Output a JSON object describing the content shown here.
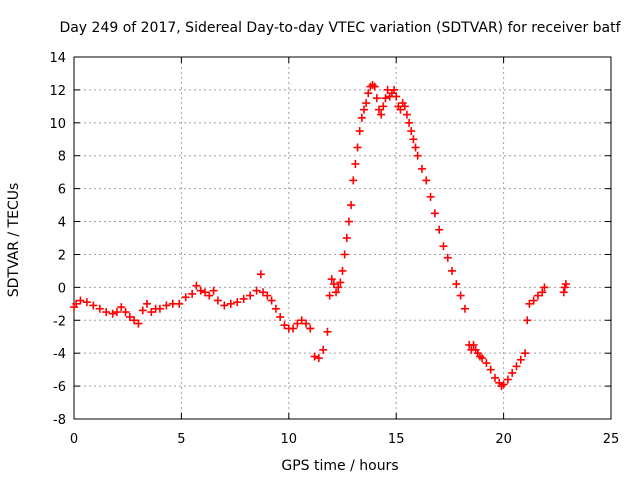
{
  "chart_data": {
    "type": "scatter",
    "title": "Day 249 of 2017, Sidereal Day-to-day VTEC variation (SDTVAR) for receiver batf",
    "xlabel": "GPS time / hours",
    "ylabel": "SDTVAR / TECUs",
    "xlim": [
      0,
      25
    ],
    "ylim": [
      -8,
      14
    ],
    "xticks": [
      0,
      5,
      10,
      15,
      20,
      25
    ],
    "yticks": [
      -8,
      -6,
      -4,
      -2,
      0,
      2,
      4,
      6,
      8,
      10,
      12,
      14
    ],
    "grid": true,
    "marker": "+",
    "series": [
      {
        "name": "SDTVAR",
        "color": "#ff0000",
        "x": [
          0,
          0.1,
          0.3,
          0.6,
          0.9,
          1.2,
          1.5,
          1.8,
          2.0,
          2.2,
          2.4,
          2.6,
          2.8,
          3.0,
          3.2,
          3.4,
          3.6,
          3.8,
          4.0,
          4.3,
          4.6,
          4.9,
          5.2,
          5.5,
          5.7,
          5.9,
          6.1,
          6.3,
          6.5,
          6.7,
          7.0,
          7.3,
          7.6,
          7.9,
          8.2,
          8.5,
          8.7,
          8.8,
          9.0,
          9.2,
          9.4,
          9.6,
          9.8,
          10.0,
          10.2,
          10.4,
          10.6,
          10.8,
          11.0,
          11.2,
          11.4,
          11.6,
          11.8,
          11.9,
          12.0,
          12.1,
          12.2,
          12.3,
          12.4,
          12.5,
          12.6,
          12.7,
          12.8,
          12.9,
          13.0,
          13.1,
          13.2,
          13.3,
          13.4,
          13.5,
          13.6,
          13.7,
          13.8,
          13.9,
          14.0,
          14.1,
          14.2,
          14.3,
          14.4,
          14.5,
          14.6,
          14.7,
          14.8,
          14.9,
          15.0,
          15.1,
          15.2,
          15.3,
          15.4,
          15.5,
          15.6,
          15.7,
          15.8,
          15.9,
          16.0,
          16.2,
          16.4,
          16.6,
          16.8,
          17.0,
          17.2,
          17.4,
          17.6,
          17.8,
          18.0,
          18.2,
          18.4,
          18.5,
          18.6,
          18.7,
          18.8,
          18.9,
          19.0,
          19.2,
          19.4,
          19.6,
          19.8,
          19.9,
          20.0,
          20.2,
          20.4,
          20.6,
          20.8,
          21.0,
          21.1,
          21.2,
          21.4,
          21.6,
          21.8,
          21.9,
          22.8,
          22.85,
          22.9
        ],
        "y": [
          -1.2,
          -1.0,
          -0.8,
          -0.9,
          -1.1,
          -1.3,
          -1.5,
          -1.6,
          -1.5,
          -1.2,
          -1.5,
          -1.8,
          -2.0,
          -2.2,
          -1.4,
          -1.0,
          -1.5,
          -1.3,
          -1.3,
          -1.1,
          -1.0,
          -1.0,
          -0.6,
          -0.4,
          0.1,
          -0.2,
          -0.3,
          -0.5,
          -0.2,
          -0.8,
          -1.1,
          -1.0,
          -0.9,
          -0.7,
          -0.5,
          -0.2,
          0.8,
          -0.3,
          -0.5,
          -0.8,
          -1.3,
          -1.8,
          -2.3,
          -2.5,
          -2.5,
          -2.2,
          -2.0,
          -2.2,
          -2.5,
          -4.2,
          -4.3,
          -3.8,
          -2.7,
          -0.5,
          0.5,
          0.2,
          -0.3,
          0.0,
          0.3,
          1.0,
          2.0,
          3.0,
          4.0,
          5.0,
          6.5,
          7.5,
          8.5,
          9.5,
          10.3,
          10.8,
          11.2,
          11.8,
          12.2,
          12.3,
          12.2,
          11.5,
          10.8,
          10.5,
          11.0,
          11.5,
          12.0,
          11.6,
          11.8,
          12.0,
          11.6,
          11.0,
          10.8,
          11.2,
          11.0,
          10.5,
          10.0,
          9.5,
          9.0,
          8.5,
          8.0,
          7.2,
          6.5,
          5.5,
          4.5,
          3.5,
          2.5,
          1.8,
          1.0,
          0.2,
          -0.5,
          -1.3,
          -3.5,
          -3.8,
          -3.5,
          -3.8,
          -4.0,
          -4.2,
          -4.3,
          -4.6,
          -5.0,
          -5.5,
          -5.8,
          -6.0,
          -5.9,
          -5.6,
          -5.2,
          -4.8,
          -4.4,
          -4.0,
          -2.0,
          -1.0,
          -0.8,
          -0.5,
          -0.3,
          0.0,
          -0.3,
          0.0,
          0.2
        ]
      }
    ]
  }
}
